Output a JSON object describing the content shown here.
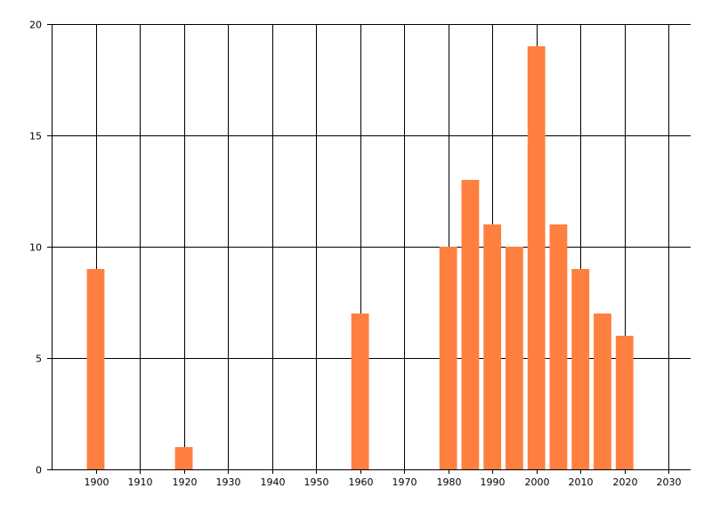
{
  "chart_data": {
    "type": "bar",
    "title": "",
    "xlabel": "",
    "ylabel": "",
    "x_ticks": [
      "1900",
      "1910",
      "1920",
      "1930",
      "1940",
      "1950",
      "1960",
      "1970",
      "1980",
      "1990",
      "2000",
      "2010",
      "2020",
      "2030"
    ],
    "xlim": [
      1890,
      2035
    ],
    "y_ticks": [
      "0",
      "5",
      "10",
      "15",
      "20"
    ],
    "ylim": [
      0,
      20
    ],
    "grid": true,
    "bar_width_years": 4,
    "bar_color": "#FF7F3F",
    "x": [
      1900,
      1920,
      1960,
      1980,
      1985,
      1990,
      1995,
      2000,
      2005,
      2010,
      2015,
      2020
    ],
    "values": [
      9,
      1,
      7,
      10,
      13,
      11,
      10,
      19,
      11,
      9,
      7,
      6
    ]
  }
}
